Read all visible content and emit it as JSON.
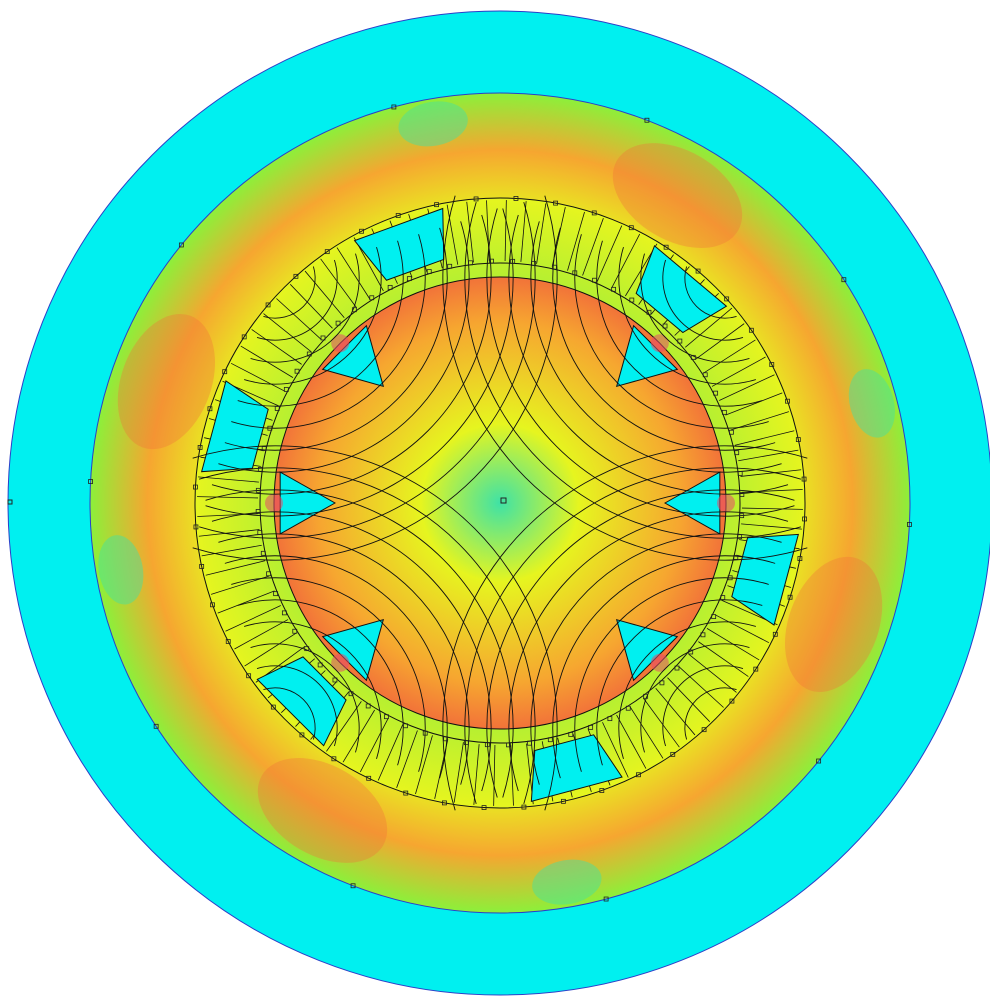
{
  "view": {
    "kind": "magnetic flux density plot",
    "pole_count": 4,
    "stator_slot_count": 6,
    "flux_line_count_per_pole": 12
  },
  "colors": {
    "background": "#ffffff",
    "air_region": "#00f0f0",
    "boundary_stroke": "#2c3ec8",
    "flux_line": "#111111",
    "node_marker_stroke": "#222222",
    "band_low": "#3fe2a6",
    "band_mid_low": "#8cf03a",
    "band_mid": "#e6f51f",
    "band_mid_high": "#f6a630",
    "band_high": "#f27339",
    "band_peak": "#e84a6a"
  }
}
